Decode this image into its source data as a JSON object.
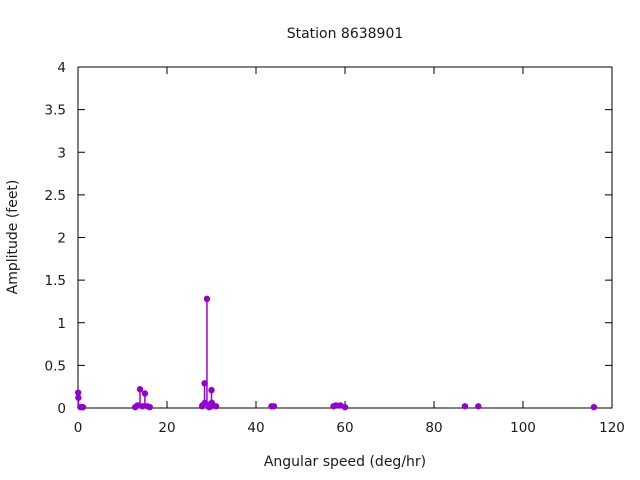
{
  "page": {
    "background": "#ffffff",
    "text_color": "#1a1a1a",
    "border_color": "#000000"
  },
  "chart_data": {
    "type": "scatter",
    "subtype": "impulses-with-points",
    "title": "Station 8638901",
    "xlabel": "Angular speed (deg/hr)",
    "ylabel": "Amplitude (feet)",
    "xlim": [
      0,
      120
    ],
    "ylim": [
      0,
      4
    ],
    "xticks": [
      0,
      20,
      40,
      60,
      80,
      100,
      120
    ],
    "xtick_labels": [
      "0",
      "20",
      "40",
      "60",
      "80",
      "100",
      "120"
    ],
    "yticks": [
      0,
      0.5,
      1,
      1.5,
      2,
      2.5,
      3,
      3.5,
      4
    ],
    "ytick_labels": [
      "0",
      "0.5",
      "1",
      "1.5",
      "2",
      "2.5",
      "3",
      "3.5",
      "4"
    ],
    "grid": false,
    "legend": "none",
    "marker_color": "#9400d3",
    "series": [
      {
        "name": "amplitude",
        "points": [
          [
            0.04,
            0.18
          ],
          [
            0.08,
            0.12
          ],
          [
            0.54,
            0.01
          ],
          [
            1.02,
            0.01
          ],
          [
            1.1,
            0.01
          ],
          [
            12.85,
            0.01
          ],
          [
            13.4,
            0.03
          ],
          [
            13.94,
            0.22
          ],
          [
            14.49,
            0.02
          ],
          [
            15.04,
            0.17
          ],
          [
            15.58,
            0.02
          ],
          [
            16.14,
            0.01
          ],
          [
            27.9,
            0.02
          ],
          [
            27.97,
            0.03
          ],
          [
            28.44,
            0.29
          ],
          [
            28.51,
            0.06
          ],
          [
            28.98,
            1.28
          ],
          [
            29.46,
            0.01
          ],
          [
            29.53,
            0.04
          ],
          [
            29.96,
            0.02
          ],
          [
            30.0,
            0.21
          ],
          [
            30.08,
            0.06
          ],
          [
            31.02,
            0.02
          ],
          [
            43.48,
            0.02
          ],
          [
            44.03,
            0.02
          ],
          [
            57.42,
            0.02
          ],
          [
            57.97,
            0.03
          ],
          [
            58.98,
            0.03
          ],
          [
            60.0,
            0.01
          ],
          [
            86.95,
            0.02
          ],
          [
            89.95,
            0.02
          ],
          [
            115.94,
            0.01
          ]
        ]
      }
    ]
  }
}
